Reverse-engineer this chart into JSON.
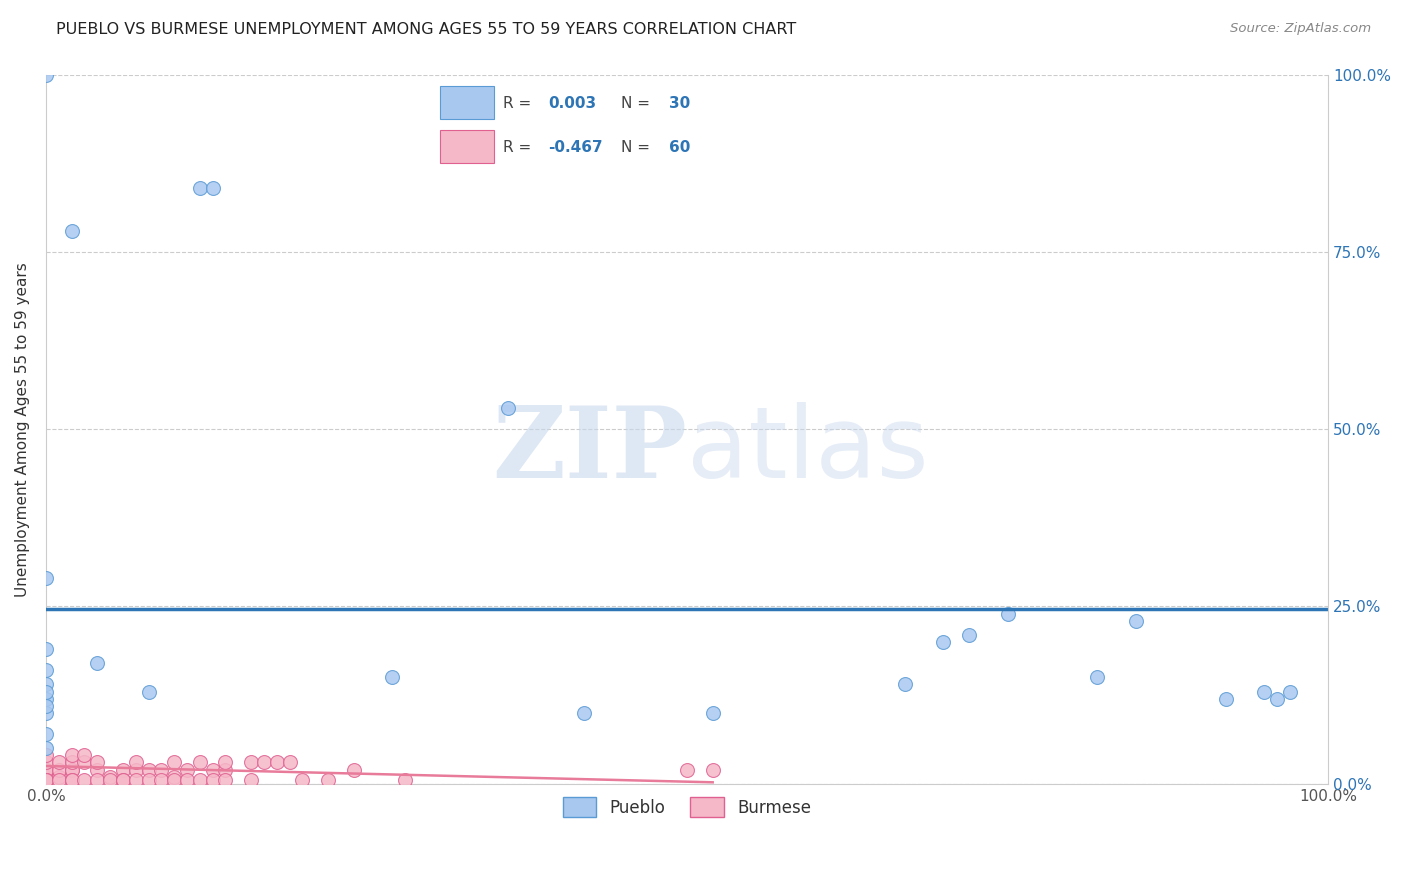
{
  "title": "PUEBLO VS BURMESE UNEMPLOYMENT AMONG AGES 55 TO 59 YEARS CORRELATION CHART",
  "source": "Source: ZipAtlas.com",
  "ylabel": "Unemployment Among Ages 55 to 59 years",
  "xlim": [
    0.0,
    1.0
  ],
  "ylim": [
    0.0,
    1.0
  ],
  "xtick_labels": [
    "0.0%",
    "100.0%"
  ],
  "ytick_labels": [
    "0.0%",
    "25.0%",
    "50.0%",
    "75.0%",
    "100.0%"
  ],
  "ytick_positions": [
    0.0,
    0.25,
    0.5,
    0.75,
    1.0
  ],
  "pueblo_color": "#a8c8f0",
  "pueblo_edge_color": "#5b9bd5",
  "burmese_color": "#f5b8c8",
  "burmese_edge_color": "#e06090",
  "trend_pueblo_color": "#2e75b6",
  "trend_burmese_color": "#e87a9a",
  "pueblo_r": "0.003",
  "pueblo_n": "30",
  "burmese_r": "-0.467",
  "burmese_n": "60",
  "pueblo_trend_y": 0.247,
  "pueblo_points_x": [
    0.02,
    0.0,
    0.12,
    0.13,
    0.0,
    0.0,
    0.0,
    0.0,
    0.04,
    0.08,
    0.27,
    0.36,
    0.42,
    0.52,
    0.67,
    0.7,
    0.72,
    0.75,
    0.82,
    0.85,
    0.92,
    0.95,
    0.96,
    0.97,
    0.0,
    0.0,
    0.0,
    0.0,
    0.0,
    0.0
  ],
  "pueblo_points_y": [
    0.78,
    1.0,
    0.84,
    0.84,
    0.19,
    0.16,
    0.14,
    0.12,
    0.17,
    0.13,
    0.15,
    0.53,
    0.1,
    0.1,
    0.14,
    0.2,
    0.21,
    0.24,
    0.15,
    0.23,
    0.12,
    0.13,
    0.12,
    0.13,
    0.1,
    0.07,
    0.05,
    0.13,
    0.11,
    0.29
  ],
  "burmese_points_x": [
    0.0,
    0.0,
    0.0,
    0.0,
    0.0,
    0.0,
    0.0,
    0.0,
    0.0,
    0.01,
    0.01,
    0.01,
    0.01,
    0.02,
    0.02,
    0.02,
    0.02,
    0.02,
    0.02,
    0.03,
    0.03,
    0.03,
    0.04,
    0.04,
    0.04,
    0.05,
    0.05,
    0.06,
    0.06,
    0.06,
    0.07,
    0.07,
    0.07,
    0.08,
    0.08,
    0.09,
    0.09,
    0.1,
    0.1,
    0.1,
    0.11,
    0.11,
    0.12,
    0.12,
    0.13,
    0.13,
    0.14,
    0.14,
    0.14,
    0.16,
    0.16,
    0.17,
    0.18,
    0.19,
    0.2,
    0.22,
    0.24,
    0.28,
    0.5,
    0.52
  ],
  "burmese_points_y": [
    0.01,
    0.01,
    0.02,
    0.02,
    0.03,
    0.04,
    0.005,
    0.005,
    0.005,
    0.01,
    0.02,
    0.03,
    0.005,
    0.02,
    0.02,
    0.03,
    0.04,
    0.005,
    0.005,
    0.03,
    0.04,
    0.005,
    0.02,
    0.03,
    0.005,
    0.01,
    0.005,
    0.02,
    0.005,
    0.005,
    0.02,
    0.03,
    0.005,
    0.02,
    0.005,
    0.02,
    0.005,
    0.01,
    0.03,
    0.005,
    0.02,
    0.005,
    0.03,
    0.005,
    0.02,
    0.005,
    0.02,
    0.03,
    0.005,
    0.03,
    0.005,
    0.03,
    0.03,
    0.03,
    0.005,
    0.005,
    0.02,
    0.005,
    0.02,
    0.02
  ],
  "burmese_trend_x": [
    0.0,
    0.52
  ],
  "burmese_trend_y": [
    0.025,
    0.002
  ],
  "watermark_zip": "ZIP",
  "watermark_atlas": "atlas",
  "legend_r1": "R =  0.003",
  "legend_n1": "N = 30",
  "legend_r2": "R = -0.467",
  "legend_n2": "N = 60",
  "marker_size": 100
}
